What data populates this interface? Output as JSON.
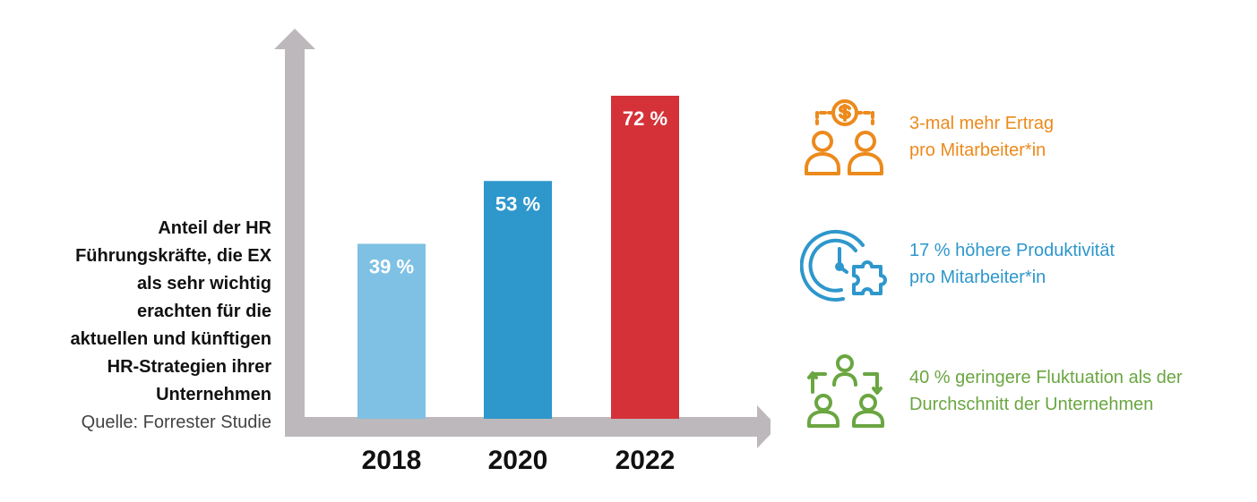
{
  "chart_data": {
    "type": "bar",
    "categories": [
      "2018",
      "2020",
      "2022"
    ],
    "values": [
      39,
      53,
      72
    ],
    "data_labels": [
      "39 %",
      "53 %",
      "72 %"
    ],
    "colors": [
      "#7fc1e4",
      "#2e97cc",
      "#d43238"
    ],
    "ylim": [
      0,
      80
    ],
    "grid": false
  },
  "caption": {
    "title": "Anteil der HR\nFührungskräfte, die EX\nals sehr wichtig\nerachten für die\naktuellen und künftigen\nHR-Strategien ihrer\nUnternehmen",
    "source": "Quelle: Forrester Studie"
  },
  "stats": [
    {
      "icon": "people-money-icon",
      "color": "#ec8a1c",
      "text": "3-mal mehr Ertrag\npro Mitarbeiter*in"
    },
    {
      "icon": "clock-puzzle-icon",
      "color": "#2e97cc",
      "text": "17 % höhere Produktivität\npro Mitarbeiter*in"
    },
    {
      "icon": "people-rotation-icon",
      "color": "#6aa641",
      "text": "40 % geringere Fluktuation als der\nDurchschnitt der Unternehmen"
    }
  ],
  "axis_color": "#bcb8bb"
}
